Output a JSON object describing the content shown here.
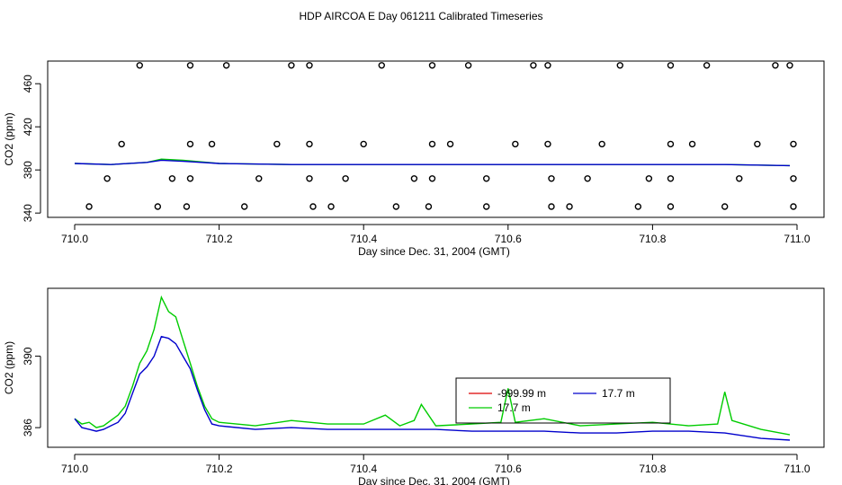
{
  "page": {
    "title": "HDP AIRCOA E  Day 061211  Calibrated Timeseries"
  },
  "colors": {
    "red": "#dd0000",
    "green": "#00cc00",
    "blue": "#0000cc",
    "axis": "#000000"
  },
  "chart_data": [
    {
      "type": "line",
      "xlabel": "Day since Dec. 31, 2004 (GMT)",
      "ylabel": "CO2 (ppm)",
      "xlim": [
        710.0,
        711.0
      ],
      "ylim": [
        336,
        481
      ],
      "xticks": [
        "710.0",
        "710.2",
        "710.4",
        "710.6",
        "710.8",
        "711.0"
      ],
      "yticks": [
        "340",
        "380",
        "420",
        "460"
      ],
      "ytick_values": [
        340,
        380,
        420,
        460
      ],
      "grid": false,
      "legend": "none",
      "series": [
        {
          "color": "green",
          "x": [
            710.0,
            710.05,
            710.1,
            710.12,
            710.15,
            710.2,
            710.3,
            710.4,
            710.5,
            710.6,
            710.7,
            710.8,
            710.9,
            710.99
          ],
          "values": [
            386,
            385,
            387,
            390,
            389,
            386,
            385,
            385,
            385,
            385,
            385,
            385,
            385,
            384
          ]
        },
        {
          "color": "blue",
          "x": [
            710.0,
            710.05,
            710.1,
            710.12,
            710.15,
            710.2,
            710.3,
            710.4,
            710.5,
            710.6,
            710.7,
            710.8,
            710.9,
            710.99
          ],
          "values": [
            386,
            385,
            387,
            389,
            388,
            386,
            385,
            385,
            385,
            385,
            385,
            385,
            385,
            384
          ]
        }
      ],
      "points": {
        "x": [
          710.09,
          710.16,
          710.21,
          710.3,
          710.325,
          710.425,
          710.495,
          710.545,
          710.635,
          710.655,
          710.755,
          710.825,
          710.875,
          710.97,
          710.99,
          710.065,
          710.16,
          710.19,
          710.28,
          710.325,
          710.4,
          710.495,
          710.52,
          710.61,
          710.655,
          710.73,
          710.825,
          710.855,
          710.945,
          710.995,
          710.045,
          710.135,
          710.16,
          710.255,
          710.325,
          710.375,
          710.47,
          710.495,
          710.57,
          710.66,
          710.71,
          710.795,
          710.825,
          710.92,
          710.995,
          710.02,
          710.115,
          710.155,
          710.235,
          710.33,
          710.355,
          710.445,
          710.49,
          710.57,
          710.66,
          710.685,
          710.78,
          710.825,
          710.9,
          710.995
        ],
        "values": [
          477,
          477,
          477,
          477,
          477,
          477,
          477,
          477,
          477,
          477,
          477,
          477,
          477,
          477,
          477,
          404,
          404,
          404,
          404,
          404,
          404,
          404,
          404,
          404,
          404,
          404,
          404,
          404,
          404,
          404,
          372,
          372,
          372,
          372,
          372,
          372,
          372,
          372,
          372,
          372,
          372,
          372,
          372,
          372,
          372,
          346,
          346,
          346,
          346,
          346,
          346,
          346,
          346,
          346,
          346,
          346,
          346,
          346,
          346,
          346
        ]
      }
    },
    {
      "type": "line",
      "xlabel": "Day since Dec. 31, 2004 (GMT)",
      "ylabel": "CO2 (ppm)",
      "xlim": [
        710.0,
        711.0
      ],
      "ylim": [
        384.9,
        393.8
      ],
      "xticks": [
        "710.0",
        "710.2",
        "710.4",
        "710.6",
        "710.8",
        "711.0"
      ],
      "yticks": [
        "386",
        "390"
      ],
      "ytick_values": [
        386,
        390
      ],
      "grid": false,
      "legend": "inside-center-right",
      "legend_entries": [
        {
          "name": "-999.99 m",
          "color": "red"
        },
        {
          "name": "17.7 m",
          "color": "blue"
        },
        {
          "name": "17.7 m",
          "color": "green"
        }
      ],
      "series": [
        {
          "color": "green",
          "x": [
            710.0,
            710.01,
            710.02,
            710.03,
            710.04,
            710.05,
            710.06,
            710.07,
            710.08,
            710.09,
            710.1,
            710.11,
            710.12,
            710.13,
            710.14,
            710.15,
            710.16,
            710.17,
            710.18,
            710.19,
            710.2,
            710.25,
            710.3,
            710.35,
            710.4,
            710.43,
            710.45,
            710.47,
            710.48,
            710.5,
            710.55,
            710.59,
            710.6,
            710.61,
            710.65,
            710.7,
            710.75,
            710.8,
            710.85,
            710.89,
            710.9,
            710.91,
            710.95,
            710.99
          ],
          "values": [
            386.5,
            386.2,
            386.3,
            386.0,
            386.1,
            386.4,
            386.7,
            387.2,
            388.3,
            389.6,
            390.3,
            391.5,
            393.3,
            392.5,
            392.2,
            390.9,
            389.6,
            388.3,
            387.2,
            386.5,
            386.3,
            386.1,
            386.4,
            386.2,
            386.2,
            386.7,
            386.1,
            386.4,
            387.3,
            386.1,
            386.2,
            386.3,
            388.2,
            386.3,
            386.5,
            386.1,
            386.2,
            386.3,
            386.1,
            386.2,
            388.0,
            386.4,
            385.9,
            385.6
          ]
        },
        {
          "color": "blue",
          "x": [
            710.0,
            710.01,
            710.02,
            710.03,
            710.04,
            710.05,
            710.06,
            710.07,
            710.08,
            710.09,
            710.1,
            710.11,
            710.12,
            710.13,
            710.14,
            710.15,
            710.16,
            710.17,
            710.18,
            710.19,
            710.2,
            710.25,
            710.3,
            710.35,
            710.4,
            710.45,
            710.5,
            710.55,
            710.6,
            710.65,
            710.7,
            710.75,
            710.8,
            710.85,
            710.9,
            710.95,
            710.99
          ],
          "values": [
            386.5,
            386.0,
            385.9,
            385.8,
            385.9,
            386.1,
            386.3,
            386.8,
            387.9,
            389.0,
            389.4,
            390.0,
            391.1,
            391.0,
            390.7,
            390.0,
            389.3,
            388.1,
            387.0,
            386.2,
            386.1,
            385.9,
            386.0,
            385.9,
            385.9,
            385.9,
            385.9,
            385.8,
            385.8,
            385.8,
            385.7,
            385.7,
            385.8,
            385.8,
            385.7,
            385.4,
            385.3
          ]
        }
      ]
    }
  ]
}
